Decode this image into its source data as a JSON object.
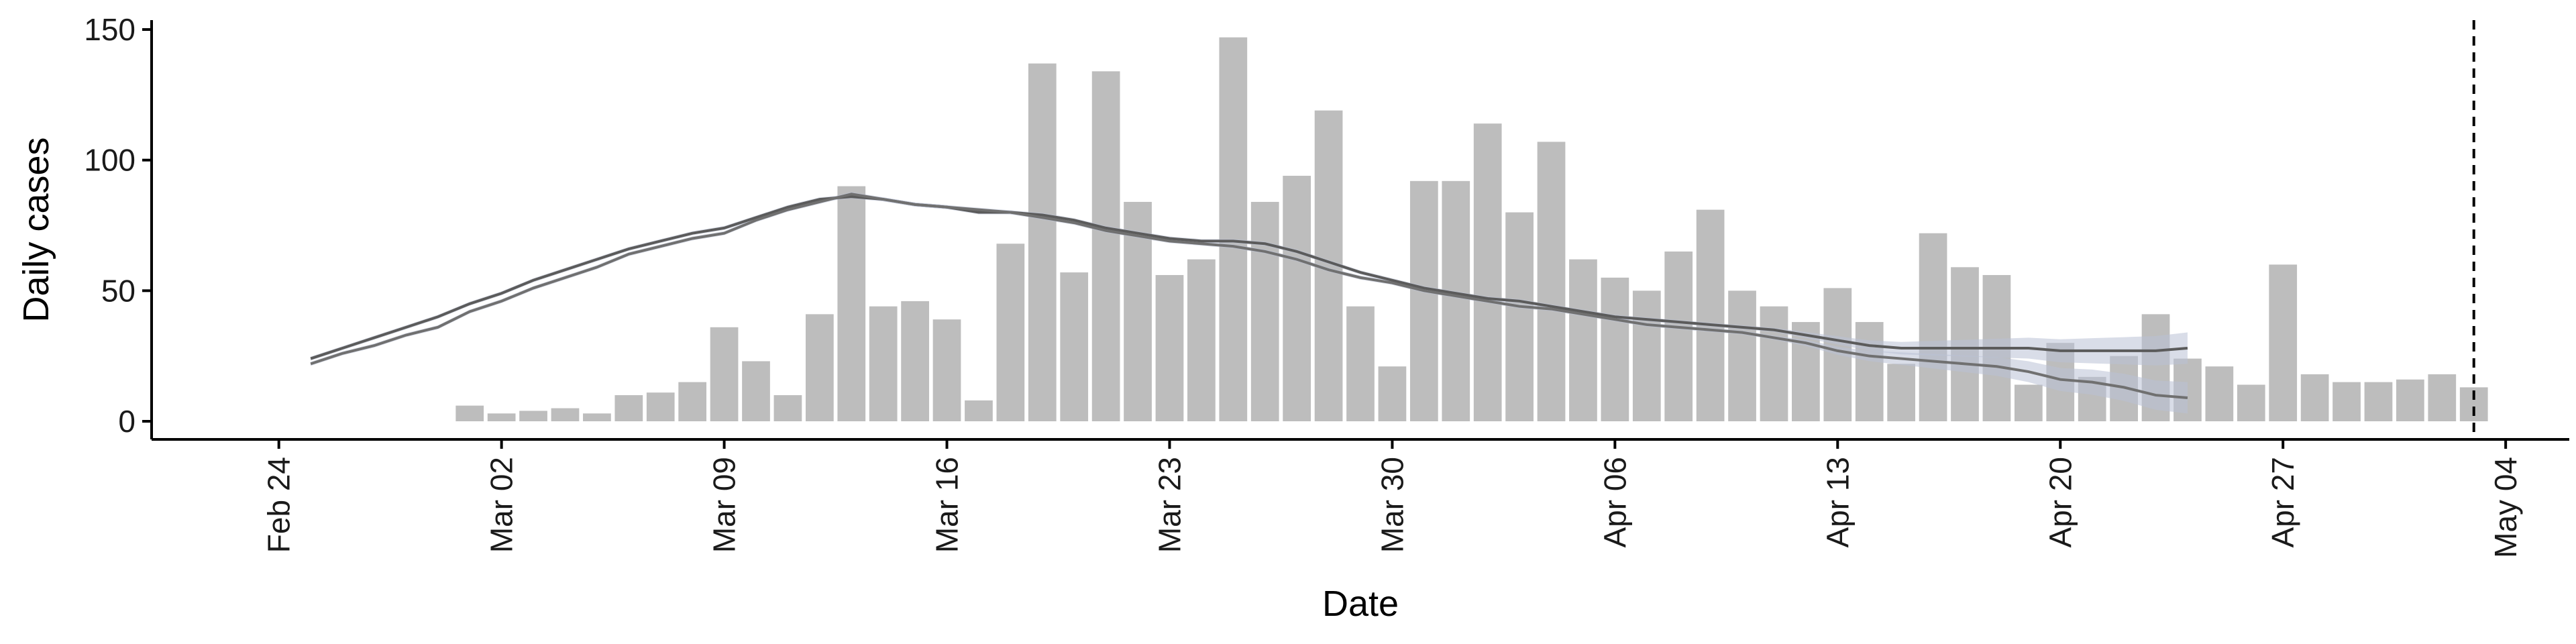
{
  "chart_data": {
    "type": "bar",
    "xlabel": "Date",
    "ylabel": "Daily cases",
    "ylim": [
      0,
      150
    ],
    "yticks": [
      0,
      50,
      100,
      150
    ],
    "xlim": [
      "2020-02-20",
      "2020-05-06"
    ],
    "xticks": [
      {
        "date": "2020-02-24",
        "label": "Feb 24"
      },
      {
        "date": "2020-03-02",
        "label": "Mar 02"
      },
      {
        "date": "2020-03-09",
        "label": "Mar 09"
      },
      {
        "date": "2020-03-16",
        "label": "Mar 16"
      },
      {
        "date": "2020-03-23",
        "label": "Mar 23"
      },
      {
        "date": "2020-03-30",
        "label": "Mar 30"
      },
      {
        "date": "2020-04-06",
        "label": "Apr 06"
      },
      {
        "date": "2020-04-13",
        "label": "Apr 13"
      },
      {
        "date": "2020-04-20",
        "label": "Apr 20"
      },
      {
        "date": "2020-04-27",
        "label": "Apr 27"
      },
      {
        "date": "2020-05-04",
        "label": "May 04"
      }
    ],
    "bars": {
      "dates": [
        "2020-03-01",
        "2020-03-02",
        "2020-03-03",
        "2020-03-04",
        "2020-03-05",
        "2020-03-06",
        "2020-03-07",
        "2020-03-08",
        "2020-03-09",
        "2020-03-10",
        "2020-03-11",
        "2020-03-12",
        "2020-03-13",
        "2020-03-14",
        "2020-03-15",
        "2020-03-16",
        "2020-03-17",
        "2020-03-18",
        "2020-03-19",
        "2020-03-20",
        "2020-03-21",
        "2020-03-22",
        "2020-03-23",
        "2020-03-24",
        "2020-03-25",
        "2020-03-26",
        "2020-03-27",
        "2020-03-28",
        "2020-03-29",
        "2020-03-30",
        "2020-03-31",
        "2020-04-01",
        "2020-04-02",
        "2020-04-03",
        "2020-04-04",
        "2020-04-05",
        "2020-04-06",
        "2020-04-07",
        "2020-04-08",
        "2020-04-09",
        "2020-04-10",
        "2020-04-11",
        "2020-04-12",
        "2020-04-13",
        "2020-04-14",
        "2020-04-15",
        "2020-04-16",
        "2020-04-17",
        "2020-04-18",
        "2020-04-19",
        "2020-04-20",
        "2020-04-21",
        "2020-04-22",
        "2020-04-23",
        "2020-04-24",
        "2020-04-25",
        "2020-04-26",
        "2020-04-27",
        "2020-04-28",
        "2020-04-29",
        "2020-04-30",
        "2020-05-01",
        "2020-05-02",
        "2020-05-03"
      ],
      "values": [
        6,
        3,
        4,
        5,
        3,
        10,
        11,
        15,
        36,
        23,
        10,
        41,
        90,
        44,
        46,
        39,
        8,
        68,
        137,
        57,
        134,
        84,
        56,
        62,
        147,
        84,
        94,
        119,
        44,
        21,
        92,
        92,
        114,
        80,
        107,
        62,
        55,
        50,
        65,
        81,
        50,
        44,
        38,
        51,
        38,
        22,
        72,
        59,
        56,
        14,
        30,
        17,
        25,
        41,
        24,
        21,
        14,
        60,
        18,
        15,
        15,
        16,
        18,
        13
      ],
      "color": "#bdbdbd"
    },
    "series": [
      {
        "dates": [
          "2020-02-25",
          "2020-02-26",
          "2020-02-27",
          "2020-02-28",
          "2020-02-29",
          "2020-03-01",
          "2020-03-02",
          "2020-03-03",
          "2020-03-04",
          "2020-03-05",
          "2020-03-06",
          "2020-03-07",
          "2020-03-08",
          "2020-03-09",
          "2020-03-10",
          "2020-03-11",
          "2020-03-12",
          "2020-03-13",
          "2020-03-14",
          "2020-03-15",
          "2020-03-16",
          "2020-03-17",
          "2020-03-18",
          "2020-03-19",
          "2020-03-20",
          "2020-03-21",
          "2020-03-22",
          "2020-03-23",
          "2020-03-24",
          "2020-03-25",
          "2020-03-26",
          "2020-03-27",
          "2020-03-28",
          "2020-03-29",
          "2020-03-30",
          "2020-03-31",
          "2020-04-01",
          "2020-04-02",
          "2020-04-03",
          "2020-04-04",
          "2020-04-05",
          "2020-04-06",
          "2020-04-07",
          "2020-04-08",
          "2020-04-09",
          "2020-04-10",
          "2020-04-11",
          "2020-04-12",
          "2020-04-13",
          "2020-04-14",
          "2020-04-15",
          "2020-04-16",
          "2020-04-17",
          "2020-04-18",
          "2020-04-19",
          "2020-04-20",
          "2020-04-21",
          "2020-04-22",
          "2020-04-23",
          "2020-04-24"
        ],
        "values": [
          24,
          28,
          32,
          36,
          40,
          45,
          49,
          54,
          58,
          62,
          66,
          69,
          72,
          74,
          78,
          82,
          85,
          86,
          85,
          83,
          82,
          80,
          80,
          79,
          77,
          74,
          72,
          70,
          69,
          69,
          68,
          65,
          61,
          57,
          54,
          51,
          49,
          47,
          46,
          44,
          42,
          40,
          39,
          38,
          37,
          36,
          35,
          33,
          31,
          29,
          28,
          28,
          28,
          28,
          28,
          27,
          27,
          27,
          27,
          28
        ],
        "color": "#5b5b5b",
        "band_color": "#b9c1d6"
      },
      {
        "dates": [
          "2020-02-25",
          "2020-02-26",
          "2020-02-27",
          "2020-02-28",
          "2020-02-29",
          "2020-03-01",
          "2020-03-02",
          "2020-03-03",
          "2020-03-04",
          "2020-03-05",
          "2020-03-06",
          "2020-03-07",
          "2020-03-08",
          "2020-03-09",
          "2020-03-10",
          "2020-03-11",
          "2020-03-12",
          "2020-03-13",
          "2020-03-14",
          "2020-03-15",
          "2020-03-16",
          "2020-03-17",
          "2020-03-18",
          "2020-03-19",
          "2020-03-20",
          "2020-03-21",
          "2020-03-22",
          "2020-03-23",
          "2020-03-24",
          "2020-03-25",
          "2020-03-26",
          "2020-03-27",
          "2020-03-28",
          "2020-03-29",
          "2020-03-30",
          "2020-03-31",
          "2020-04-01",
          "2020-04-02",
          "2020-04-03",
          "2020-04-04",
          "2020-04-05",
          "2020-04-06",
          "2020-04-07",
          "2020-04-08",
          "2020-04-09",
          "2020-04-10",
          "2020-04-11",
          "2020-04-12",
          "2020-04-13",
          "2020-04-14",
          "2020-04-15",
          "2020-04-16",
          "2020-04-17",
          "2020-04-18",
          "2020-04-19",
          "2020-04-20",
          "2020-04-21",
          "2020-04-22",
          "2020-04-23",
          "2020-04-24"
        ],
        "values": [
          22,
          26,
          29,
          33,
          36,
          42,
          46,
          51,
          55,
          59,
          64,
          67,
          70,
          72,
          77,
          81,
          84,
          87,
          85,
          83,
          82,
          81,
          80,
          78,
          76,
          73,
          71,
          69,
          68,
          67,
          65,
          62,
          58,
          55,
          53,
          50,
          48,
          46,
          44,
          43,
          41,
          39,
          37,
          36,
          35,
          34,
          32,
          30,
          27,
          25,
          24,
          23,
          22,
          21,
          19,
          16,
          15,
          13,
          10,
          9
        ],
        "color": "#707070",
        "band_color": "#b9c1d6"
      }
    ],
    "vline": {
      "date": "2020-05-03",
      "style": "dashed",
      "color": "#000000"
    },
    "grid": false
  }
}
